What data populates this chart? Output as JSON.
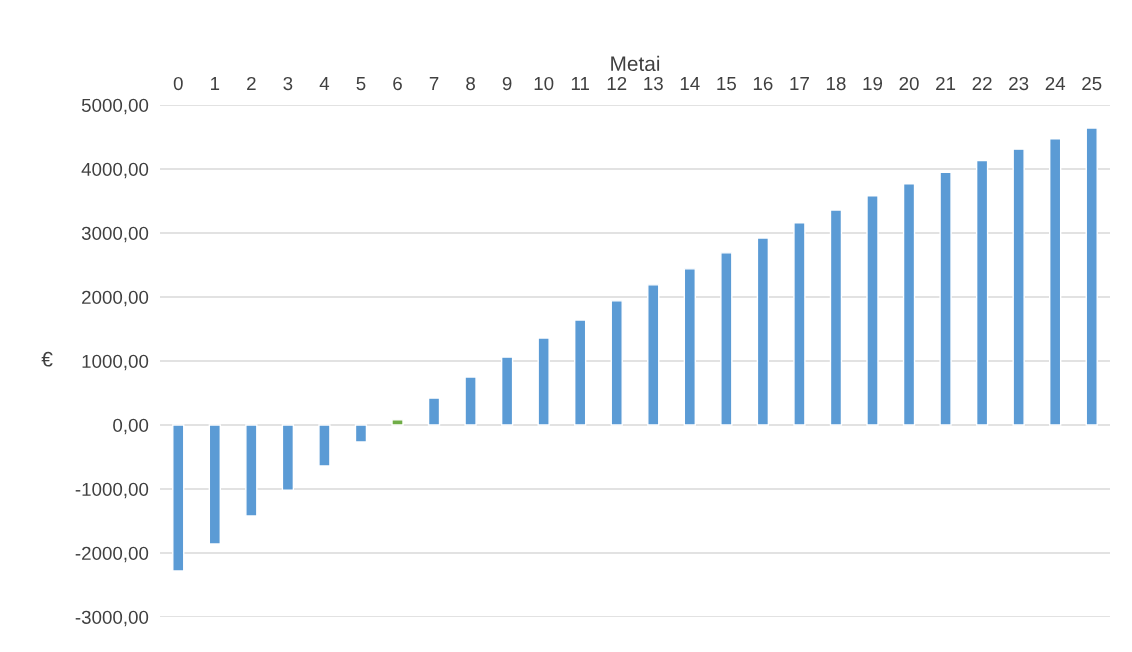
{
  "chart_data": {
    "type": "bar",
    "xlabel": "Metai",
    "ylabel": "€",
    "categories": [
      "0",
      "1",
      "2",
      "3",
      "4",
      "5",
      "6",
      "7",
      "8",
      "9",
      "10",
      "11",
      "12",
      "13",
      "14",
      "15",
      "16",
      "17",
      "18",
      "19",
      "20",
      "21",
      "22",
      "23",
      "24",
      "25"
    ],
    "values": [
      -2280,
      -1860,
      -1420,
      -1020,
      -640,
      -265,
      80,
      420,
      750,
      1060,
      1360,
      1640,
      1940,
      2190,
      2440,
      2690,
      2920,
      3160,
      3360,
      3580,
      3770,
      3950,
      4130,
      4310,
      4470,
      4640
    ],
    "colors": [
      "#5b9bd5",
      "#5b9bd5",
      "#5b9bd5",
      "#5b9bd5",
      "#5b9bd5",
      "#5b9bd5",
      "#70ad47",
      "#5b9bd5",
      "#5b9bd5",
      "#5b9bd5",
      "#5b9bd5",
      "#5b9bd5",
      "#5b9bd5",
      "#5b9bd5",
      "#5b9bd5",
      "#5b9bd5",
      "#5b9bd5",
      "#5b9bd5",
      "#5b9bd5",
      "#5b9bd5",
      "#5b9bd5",
      "#5b9bd5",
      "#5b9bd5",
      "#5b9bd5",
      "#5b9bd5",
      "#5b9bd5"
    ],
    "ylim": [
      -3000,
      5000
    ],
    "yticks": [
      {
        "value": -3000,
        "label": "-3000,00"
      },
      {
        "value": -2000,
        "label": "-2000,00"
      },
      {
        "value": -1000,
        "label": "-1000,00"
      },
      {
        "value": 0,
        "label": "0,00"
      },
      {
        "value": 1000,
        "label": "1000,00"
      },
      {
        "value": 2000,
        "label": "2000,00"
      },
      {
        "value": 3000,
        "label": "3000,00"
      },
      {
        "value": 4000,
        "label": "4000,00"
      },
      {
        "value": 5000,
        "label": "5000,00"
      }
    ],
    "grid": "y"
  }
}
